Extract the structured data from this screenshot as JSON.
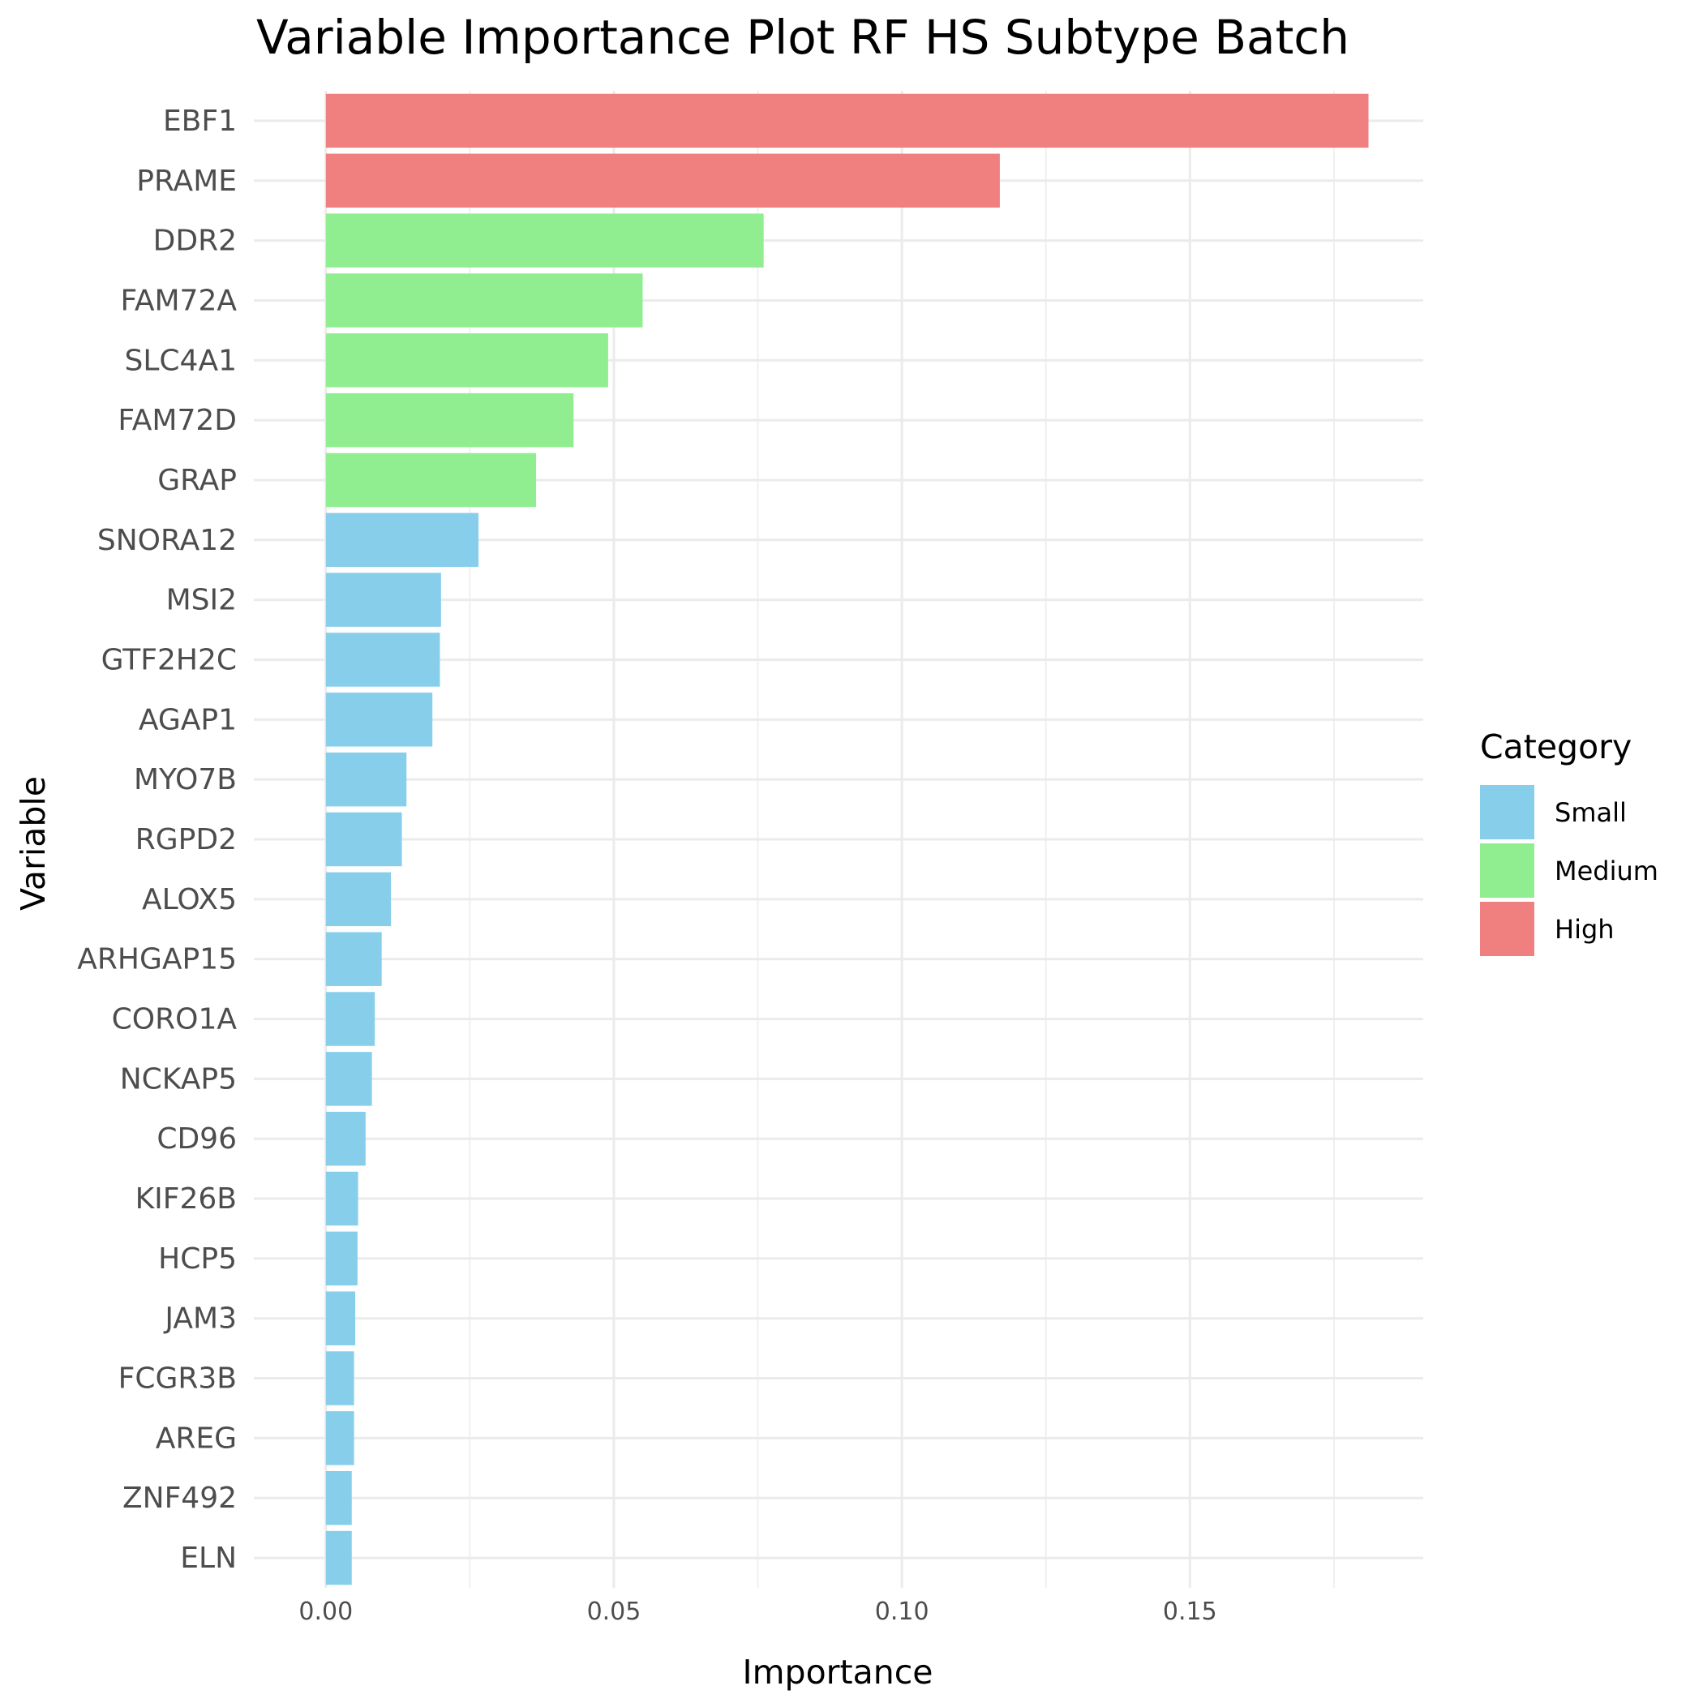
{
  "chart_data": {
    "type": "bar",
    "orientation": "horizontal",
    "title": "Variable Importance Plot RF HS Subtype Batch",
    "xlabel": "Importance",
    "ylabel": "Variable",
    "xlim": [
      -0.0125,
      0.1905
    ],
    "xticks": [
      0.0,
      0.05,
      0.1,
      0.15
    ],
    "xtick_labels": [
      "0.00",
      "0.05",
      "0.10",
      "0.15"
    ],
    "grid": true,
    "legend": {
      "title": "Category",
      "position": "right",
      "entries": [
        {
          "label": "Small",
          "color": "#87ceeb"
        },
        {
          "label": "Medium",
          "color": "#90ee90"
        },
        {
          "label": "High",
          "color": "#f08080"
        }
      ]
    },
    "categories": [
      "EBF1",
      "PRAME",
      "DDR2",
      "FAM72A",
      "SLC4A1",
      "FAM72D",
      "GRAP",
      "SNORA12",
      "MSI2",
      "GTF2H2C",
      "AGAP1",
      "MYO7B",
      "RGPD2",
      "ALOX5",
      "ARHGAP15",
      "CORO1A",
      "NCKAP5",
      "CD96",
      "KIF26B",
      "HCP5",
      "JAM3",
      "FCGR3B",
      "AREG",
      "ZNF492",
      "ELN"
    ],
    "values": [
      0.181,
      0.117,
      0.076,
      0.055,
      0.049,
      0.043,
      0.0365,
      0.0265,
      0.02,
      0.0198,
      0.0185,
      0.014,
      0.0132,
      0.0113,
      0.0097,
      0.0085,
      0.008,
      0.0069,
      0.0056,
      0.0055,
      0.0051,
      0.0049,
      0.0049,
      0.0045,
      0.0045
    ],
    "value_category": [
      "High",
      "High",
      "Medium",
      "Medium",
      "Medium",
      "Medium",
      "Medium",
      "Small",
      "Small",
      "Small",
      "Small",
      "Small",
      "Small",
      "Small",
      "Small",
      "Small",
      "Small",
      "Small",
      "Small",
      "Small",
      "Small",
      "Small",
      "Small",
      "Small",
      "Small"
    ]
  }
}
